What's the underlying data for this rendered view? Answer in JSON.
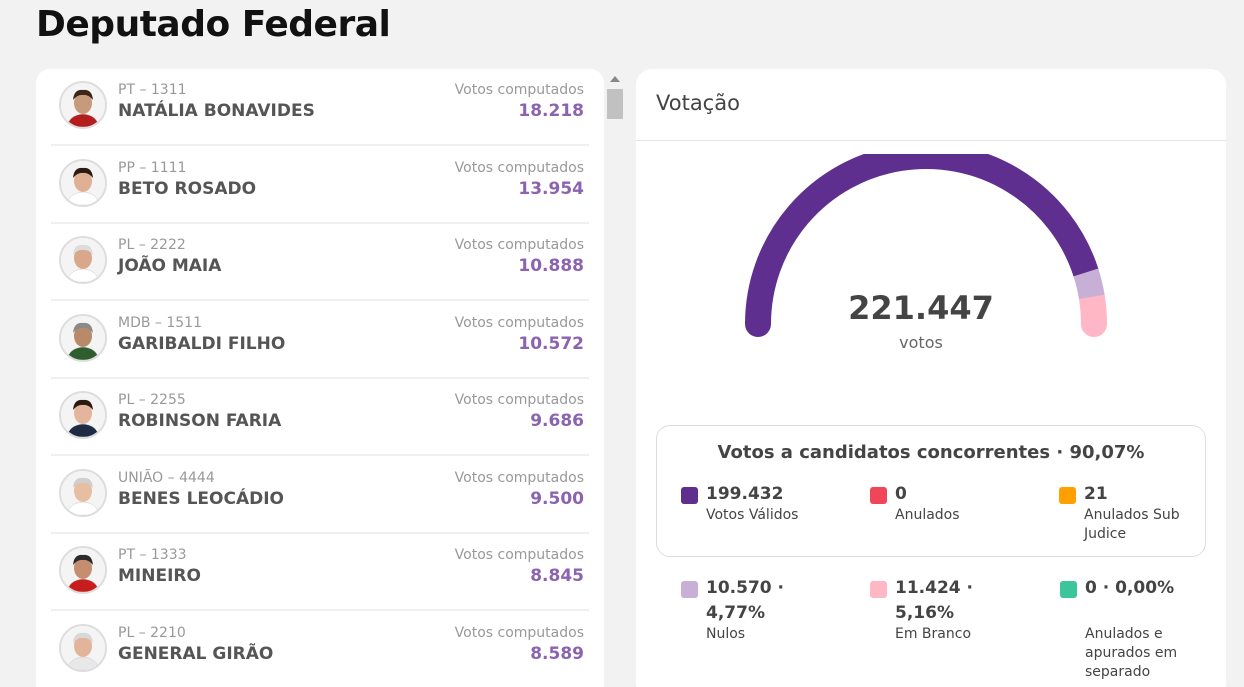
{
  "page": {
    "title": "Deputado Federal"
  },
  "colors": {
    "accent_purple": "#5e2f8e",
    "value_purple": "#8b63b0",
    "nulos": "#c8afd6",
    "branco": "#ffb7c5",
    "anulados": "#f0465a",
    "sub_judice": "#ffa000",
    "separado": "#3cc59b"
  },
  "candidates": [
    {
      "party_number": "PT – 1311",
      "name": "NATÁLIA BONAVIDES",
      "votes_label": "Votos computados",
      "votes": "18.218",
      "avatar_icon": "candidate-photo"
    },
    {
      "party_number": "PP – 1111",
      "name": "BETO ROSADO",
      "votes_label": "Votos computados",
      "votes": "13.954",
      "avatar_icon": "candidate-photo"
    },
    {
      "party_number": "PL – 2222",
      "name": "JOÃO MAIA",
      "votes_label": "Votos computados",
      "votes": "10.888",
      "avatar_icon": "candidate-photo"
    },
    {
      "party_number": "MDB – 1511",
      "name": "GARIBALDI FILHO",
      "votes_label": "Votos computados",
      "votes": "10.572",
      "avatar_icon": "candidate-photo"
    },
    {
      "party_number": "PL – 2255",
      "name": "ROBINSON FARIA",
      "votes_label": "Votos computados",
      "votes": "9.686",
      "avatar_icon": "candidate-photo"
    },
    {
      "party_number": "UNIÃO – 4444",
      "name": "BENES LEOCÁDIO",
      "votes_label": "Votos computados",
      "votes": "9.500",
      "avatar_icon": "candidate-photo"
    },
    {
      "party_number": "PT – 1333",
      "name": "MINEIRO",
      "votes_label": "Votos computados",
      "votes": "8.845",
      "avatar_icon": "candidate-photo"
    },
    {
      "party_number": "PL – 2210",
      "name": "GENERAL GIRÃO",
      "votes_label": "Votos computados",
      "votes": "8.589",
      "avatar_icon": "candidate-photo"
    }
  ],
  "votacao": {
    "title": "Votação",
    "total": "221.447",
    "total_unit": "votos",
    "gauge_segments": [
      {
        "name": "validos",
        "fraction": 0.9007,
        "color": "#5e2f8e"
      },
      {
        "name": "nulos",
        "fraction": 0.0477,
        "color": "#c8afd6"
      },
      {
        "name": "branco",
        "fraction": 0.0516,
        "color": "#ffb7c5"
      }
    ],
    "concorrentes_title": "Votos a candidatos concorrentes · 90,07%",
    "concorrentes": [
      {
        "value": "199.432",
        "label": "Votos Válidos",
        "color": "#5e2f8e"
      },
      {
        "value": "0",
        "label": "Anulados",
        "color": "#f0465a"
      },
      {
        "value": "21",
        "label": "Anulados Sub Judice",
        "color": "#ffa000"
      }
    ],
    "others": [
      {
        "value": "10.570 · 4,77%",
        "label": "Nulos",
        "color": "#c8afd6"
      },
      {
        "value": "11.424 · 5,16%",
        "label": "Em Branco",
        "color": "#ffb7c5"
      },
      {
        "value": "0 · 0,00%",
        "label": "Anulados e apurados em separado",
        "color": "#3cc59b"
      }
    ]
  }
}
